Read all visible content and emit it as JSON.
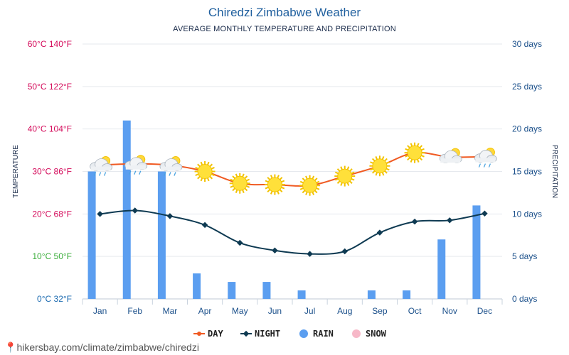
{
  "chart_data": {
    "type": "bar",
    "title": "Chiredzi Zimbabwe Weather",
    "subtitle": "AVERAGE MONTHLY TEMPERATURE AND PRECIPITATION",
    "ylabel_left": "TEMPERATURE",
    "ylabel_right": "PRECIPITATION",
    "categories": [
      "Jan",
      "Feb",
      "Mar",
      "Apr",
      "May",
      "Jun",
      "Jul",
      "Aug",
      "Sep",
      "Oct",
      "Nov",
      "Dec"
    ],
    "left_ticks": [
      "0°C 32°F",
      "10°C 50°F",
      "20°C 68°F",
      "30°C 86°F",
      "40°C 104°F",
      "50°C 122°F",
      "60°C 140°F"
    ],
    "left_tick_colors": [
      "#1a6ab0",
      "#3aad3a",
      "#d40a5a",
      "#d40a5a",
      "#d40a5a",
      "#d40a5a",
      "#d40a5a"
    ],
    "right_ticks": [
      "0 days",
      "5 days",
      "10 days",
      "15 days",
      "20 days",
      "25 days",
      "30 days"
    ],
    "temp_range": [
      0,
      60
    ],
    "rain_range": [
      0,
      30
    ],
    "series": [
      {
        "name": "DAY",
        "values": [
          31.5,
          31.8,
          31.5,
          30.0,
          27.2,
          26.9,
          26.7,
          28.9,
          31.3,
          34.4,
          33.4,
          33.5
        ],
        "color": "#f05a22"
      },
      {
        "name": "NIGHT",
        "values": [
          20.0,
          20.8,
          19.5,
          17.4,
          13.2,
          11.4,
          10.6,
          11.2,
          15.6,
          18.2,
          18.5,
          20.1
        ],
        "color": "#0e3a52"
      },
      {
        "name": "RAIN",
        "values": [
          15,
          21,
          15,
          3,
          2,
          2,
          1,
          0,
          1,
          1,
          7,
          11
        ],
        "color": "#5b9ef0"
      },
      {
        "name": "SNOW",
        "values": [
          0,
          0,
          0,
          0,
          0,
          0,
          0,
          0,
          0,
          0,
          0,
          0
        ],
        "color": "#f7b8c8"
      }
    ],
    "weather_icons": [
      "partly-cloudy-rain-icon",
      "partly-cloudy-rain-icon",
      "partly-cloudy-rain-icon",
      "sun-icon",
      "sun-icon",
      "sun-icon",
      "sun-icon",
      "sun-icon",
      "sun-icon",
      "sun-icon",
      "partly-cloudy-icon",
      "partly-cloudy-rain-icon"
    ],
    "grid": true,
    "legend_position": "bottom"
  },
  "footer_text": "hikersbay.com/climate/zimbabwe/chiredzi"
}
